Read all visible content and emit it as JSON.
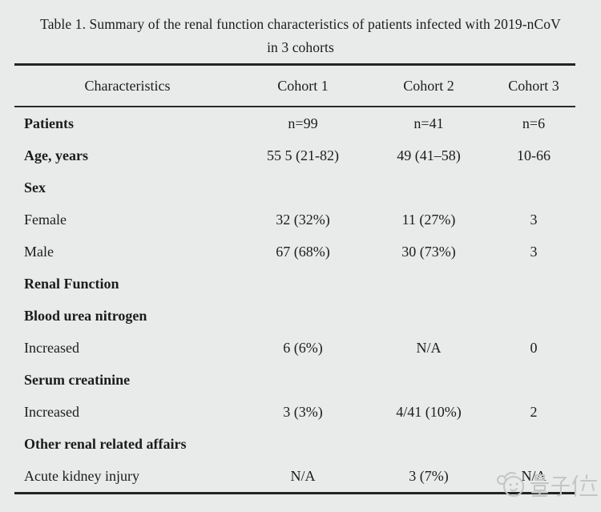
{
  "title": {
    "line1": "Table 1. Summary of the renal function characteristics of patients infected with 2019-nCoV",
    "line2": "in 3 cohorts"
  },
  "table": {
    "headers": [
      "Characteristics",
      "Cohort 1",
      "Cohort 2",
      "Cohort 3"
    ],
    "rows": [
      {
        "label": "Patients",
        "bold": true,
        "values": [
          "n=99",
          "n=41",
          "n=6"
        ]
      },
      {
        "label": "Age, years",
        "bold": true,
        "values": [
          "55 5 (21-82)",
          "49 (41–58)",
          "10-66"
        ]
      },
      {
        "label": "Sex",
        "bold": true,
        "values": [
          "",
          "",
          ""
        ]
      },
      {
        "label": "Female",
        "bold": false,
        "values": [
          "32 (32%)",
          "11 (27%)",
          "3"
        ]
      },
      {
        "label": "Male",
        "bold": false,
        "values": [
          "67 (68%)",
          "30 (73%)",
          "3"
        ]
      },
      {
        "label": "Renal Function",
        "bold": true,
        "values": [
          "",
          "",
          ""
        ]
      },
      {
        "label": "Blood urea nitrogen",
        "bold": true,
        "values": [
          "",
          "",
          ""
        ]
      },
      {
        "label": "Increased",
        "bold": false,
        "values": [
          "6 (6%)",
          "N/A",
          "0"
        ]
      },
      {
        "label": "Serum creatinine",
        "bold": true,
        "values": [
          "",
          "",
          ""
        ]
      },
      {
        "label": "Increased",
        "bold": false,
        "values": [
          "3 (3%)",
          "4/41 (10%)",
          "2"
        ]
      },
      {
        "label": "Other renal related affairs",
        "bold": true,
        "values": [
          "",
          "",
          ""
        ]
      },
      {
        "label": "Acute kidney injury",
        "bold": false,
        "values": [
          "N/A",
          "3 (7%)",
          "N/A"
        ]
      }
    ]
  },
  "watermark": {
    "text": "量子位",
    "color": "#c3c6c6"
  },
  "colors": {
    "background": "#e9eaea",
    "text": "#1c1c1c",
    "rule": "#232323"
  }
}
